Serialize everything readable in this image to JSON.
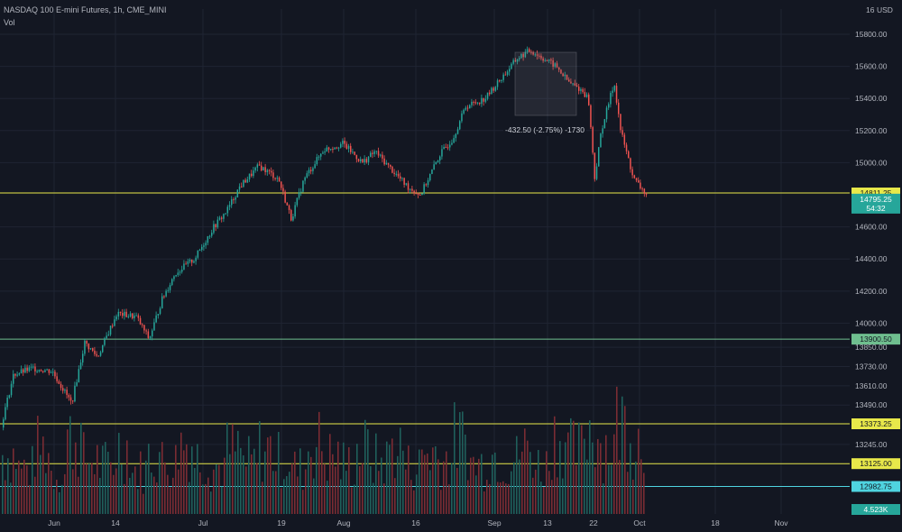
{
  "header": {
    "title": "NASDAQ 100 E-mini Futures, 1h, CME_MINI",
    "volume_label": "Vol"
  },
  "colors": {
    "background": "#131722",
    "up": "#26a69a",
    "down": "#ef5350",
    "vol_up": "#1f5f5b",
    "vol_down": "#7a2c33",
    "grid": "#1f2433",
    "yellow": "#e8e84a",
    "green_line": "#6fbf8f",
    "cyan": "#4fd4e0"
  },
  "chart_data": {
    "type": "candlestick",
    "y_unit": "USD",
    "y_ticks": [
      15800,
      15600,
      15400,
      15200,
      15000,
      14600,
      14400,
      14200,
      14000,
      13850,
      13730,
      13610,
      13490,
      13245
    ],
    "x_ticks": [
      "Jun",
      "14",
      "Jul",
      "19",
      "Aug",
      "16",
      "Sep",
      "13",
      "22",
      "Oct",
      "18",
      "Nov"
    ],
    "price_path": [
      [
        0.0,
        13350
      ],
      [
        0.02,
        13680
      ],
      [
        0.05,
        13720
      ],
      [
        0.08,
        13700
      ],
      [
        0.11,
        13500
      ],
      [
        0.13,
        13880
      ],
      [
        0.15,
        13790
      ],
      [
        0.18,
        14060
      ],
      [
        0.21,
        14040
      ],
      [
        0.23,
        13900
      ],
      [
        0.25,
        14150
      ],
      [
        0.27,
        14310
      ],
      [
        0.3,
        14400
      ],
      [
        0.33,
        14600
      ],
      [
        0.35,
        14700
      ],
      [
        0.37,
        14850
      ],
      [
        0.4,
        14980
      ],
      [
        0.43,
        14900
      ],
      [
        0.45,
        14650
      ],
      [
        0.47,
        14900
      ],
      [
        0.5,
        15080
      ],
      [
        0.53,
        15120
      ],
      [
        0.56,
        15000
      ],
      [
        0.58,
        15070
      ],
      [
        0.6,
        14980
      ],
      [
        0.63,
        14850
      ],
      [
        0.65,
        14800
      ],
      [
        0.68,
        15050
      ],
      [
        0.7,
        15150
      ],
      [
        0.72,
        15350
      ],
      [
        0.75,
        15400
      ],
      [
        0.77,
        15500
      ],
      [
        0.8,
        15650
      ],
      [
        0.82,
        15700
      ],
      [
        0.84,
        15650
      ],
      [
        0.86,
        15600
      ],
      [
        0.88,
        15500
      ],
      [
        0.9,
        15450
      ],
      [
        0.91,
        15400
      ],
      [
        0.92,
        14900
      ],
      [
        0.93,
        15200
      ],
      [
        0.95,
        15500
      ],
      [
        0.96,
        15200
      ],
      [
        0.98,
        14900
      ],
      [
        1.0,
        14800
      ]
    ],
    "vol_series": [
      0.55,
      0.42,
      0.6,
      0.38,
      0.7,
      0.5,
      0.45,
      0.62,
      0.4,
      0.55,
      0.48,
      0.66,
      0.52,
      0.44,
      0.58,
      0.47,
      0.6,
      0.5,
      0.42,
      0.65,
      0.53,
      0.46,
      0.59,
      0.49,
      0.62,
      0.44,
      0.57,
      0.51,
      0.68,
      0.46,
      0.55,
      0.5,
      0.6,
      0.45,
      0.72,
      0.58,
      0.8,
      0.64,
      0.85,
      0.7
    ],
    "horizontal_levels": [
      {
        "value": 14811.25,
        "label": "14811.25",
        "style": "yellow"
      },
      {
        "value": 13900.5,
        "label": "13900.50",
        "style": "green_line"
      },
      {
        "value": 13373.25,
        "label": "13373.25",
        "style": "yellow"
      },
      {
        "value": 13125.0,
        "label": "13125.00",
        "style": "yellow"
      },
      {
        "value": 12982.75,
        "label": "12982.75",
        "style": "cyan"
      }
    ],
    "current_price": {
      "value": 14795.25,
      "label": "14795.25",
      "countdown": "54:32"
    },
    "volume_value": "4.523K",
    "top_axis_label": "16",
    "currency": "USD",
    "measure_annotation": "-432.50 (-2.75%) -1730"
  }
}
